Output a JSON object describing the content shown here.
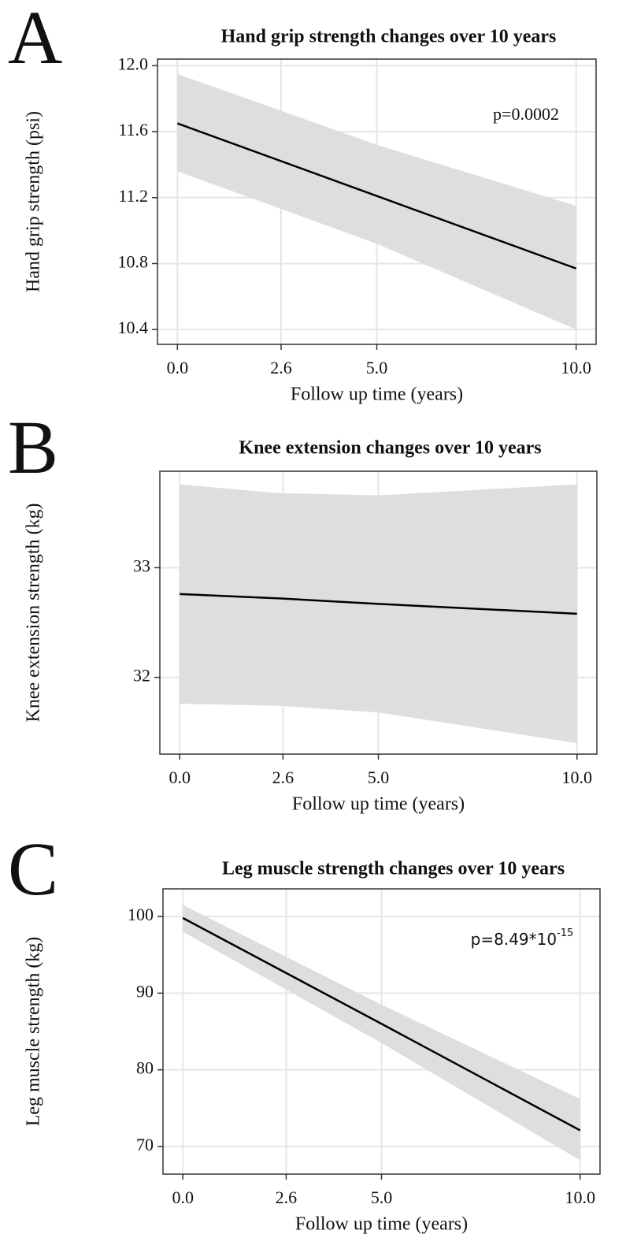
{
  "chart_data": [
    {
      "type": "line",
      "panel": "A",
      "title": "Hand grip strength changes over 10 years",
      "xlabel": "Follow up time (years)",
      "ylabel": "Hand grip strength (psi)",
      "annotation": {
        "text": "p=0.0002"
      },
      "x": [
        0,
        5,
        10
      ],
      "series": [
        {
          "color": "#000000",
          "band_color": "#dedede",
          "values": [
            11.65,
            11.21,
            10.77
          ],
          "lower": [
            11.36,
            10.92,
            10.4
          ],
          "upper": [
            11.95,
            11.52,
            11.15
          ]
        }
      ],
      "xlim": [
        -0.5,
        10.5
      ],
      "xticks": [
        {
          "value": 0,
          "label": "0.0"
        },
        2.6,
        {
          "value": 5,
          "label": "5.0"
        },
        {
          "value": 10,
          "label": "10.0"
        }
      ],
      "ylim": [
        10.31,
        12.04
      ],
      "yticks": [
        {
          "value": 12,
          "label": "12.0"
        },
        11.6,
        11.2,
        10.8,
        10.4
      ],
      "grid": true
    },
    {
      "type": "line",
      "panel": "B",
      "title": "Knee extension changes over 10 years",
      "xlabel": "Follow up time (years)",
      "ylabel": "Knee extension strength (kg)",
      "x": [
        0,
        2.5,
        5,
        10
      ],
      "series": [
        {
          "color": "#000000",
          "band_color": "#dedede",
          "values": [
            32.76,
            32.72,
            32.67,
            32.58
          ],
          "lower": [
            31.76,
            31.74,
            31.68,
            31.4
          ],
          "upper": [
            33.76,
            33.68,
            33.66,
            33.76
          ]
        }
      ],
      "xlim": [
        -0.5,
        10.5
      ],
      "xticks": [
        {
          "value": 0,
          "label": "0.0"
        },
        2.6,
        {
          "value": 5,
          "label": "5.0"
        },
        {
          "value": 10,
          "label": "10.0"
        }
      ],
      "ylim": [
        31.3,
        33.88
      ],
      "yticks": [
        33,
        32
      ],
      "grid": true
    },
    {
      "type": "line",
      "panel": "C",
      "title": "Leg muscle strength changes over 10 years",
      "xlabel": "Follow up time (years)",
      "ylabel": "Leg muscle strength (kg)",
      "annotation": {
        "text": "p=8.49*10",
        "superscript": "-15"
      },
      "x": [
        0,
        5,
        10
      ],
      "series": [
        {
          "color": "#000000",
          "band_color": "#dedede",
          "values": [
            99.8,
            86.0,
            72.1
          ],
          "lower": [
            98.0,
            83.5,
            68.2
          ],
          "upper": [
            101.5,
            88.5,
            76.2
          ]
        }
      ],
      "xlim": [
        -0.5,
        10.5
      ],
      "xticks": [
        {
          "value": 0,
          "label": "0.0"
        },
        2.6,
        {
          "value": 5,
          "label": "5.0"
        },
        {
          "value": 10,
          "label": "10.0"
        }
      ],
      "ylim": [
        66.4,
        103.6
      ],
      "yticks": [
        100,
        90,
        80,
        70
      ],
      "grid": true
    }
  ]
}
